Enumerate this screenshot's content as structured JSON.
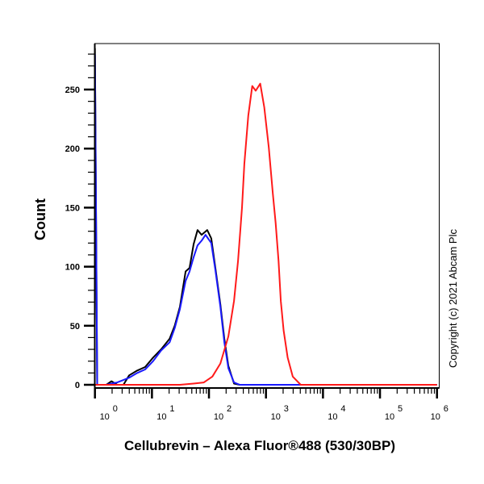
{
  "chart_data": {
    "type": "line",
    "title": "",
    "xlabel": "Cellubrevin – Alexa Fluor®488 (530/30BP)",
    "ylabel": "Count",
    "x_scale": "log",
    "xlim": [
      1,
      1000000
    ],
    "ylim": [
      0,
      289
    ],
    "x_ticks": [
      {
        "base": "10",
        "exp": "0",
        "value": 1
      },
      {
        "base": "10",
        "exp": "1",
        "value": 10
      },
      {
        "base": "10",
        "exp": "2",
        "value": 100
      },
      {
        "base": "10",
        "exp": "3",
        "value": 1000
      },
      {
        "base": "10",
        "exp": "4",
        "value": 10000
      },
      {
        "base": "10",
        "exp": "5",
        "value": 100000
      },
      {
        "base": "10",
        "exp": "6",
        "value": 1000000
      }
    ],
    "y_ticks": [
      "0",
      "50",
      "100",
      "150",
      "200",
      "250"
    ],
    "y_tick_values": [
      0,
      50,
      100,
      150,
      200,
      250
    ],
    "grid": false,
    "annotation": "Copyright (c) 2021 Abcam Plc",
    "series": [
      {
        "color": "#000000",
        "log10_x": [
          0,
          0.04,
          0.2,
          0.29,
          0.39,
          0.5,
          0.6,
          0.74,
          0.88,
          1.02,
          1.16,
          1.31,
          1.4,
          1.49,
          1.59,
          1.66,
          1.73,
          1.8,
          1.87,
          1.97,
          2.04,
          2.11,
          2.2,
          2.27,
          2.34,
          2.44,
          2.54,
          6
        ],
        "y": [
          285,
          0,
          0,
          3,
          0,
          0,
          8,
          12,
          15,
          23,
          30,
          39,
          50,
          66,
          96,
          99,
          119,
          131,
          127,
          131,
          124,
          100,
          68,
          39,
          16,
          1,
          0,
          0
        ]
      },
      {
        "color": "#1a1aff",
        "log10_x": [
          0,
          0.04,
          0.2,
          0.29,
          0.39,
          0.5,
          0.6,
          0.74,
          0.88,
          1.02,
          1.16,
          1.31,
          1.4,
          1.49,
          1.59,
          1.66,
          1.73,
          1.8,
          1.87,
          1.94,
          2.04,
          2.11,
          2.2,
          2.27,
          2.34,
          2.44,
          2.54,
          6
        ],
        "y": [
          280,
          0,
          0,
          1,
          2,
          4,
          6,
          10,
          13,
          20,
          29,
          36,
          48,
          64,
          88,
          96,
          108,
          118,
          122,
          127,
          120,
          98,
          66,
          36,
          14,
          2,
          0,
          0
        ]
      },
      {
        "color": "#ff1a1a",
        "log10_x": [
          0,
          1.49,
          1.73,
          1.91,
          2.06,
          2.2,
          2.34,
          2.44,
          2.51,
          2.58,
          2.62,
          2.69,
          2.76,
          2.82,
          2.9,
          2.97,
          3.05,
          3.12,
          3.17,
          3.22,
          3.26,
          3.31,
          3.38,
          3.47,
          3.61,
          3.75,
          6
        ],
        "y": [
          0,
          0,
          1,
          2,
          7,
          18,
          41,
          71,
          105,
          150,
          187,
          228,
          253,
          249,
          255,
          235,
          201,
          162,
          137,
          105,
          71,
          46,
          23,
          7,
          0,
          0,
          0
        ]
      }
    ]
  }
}
